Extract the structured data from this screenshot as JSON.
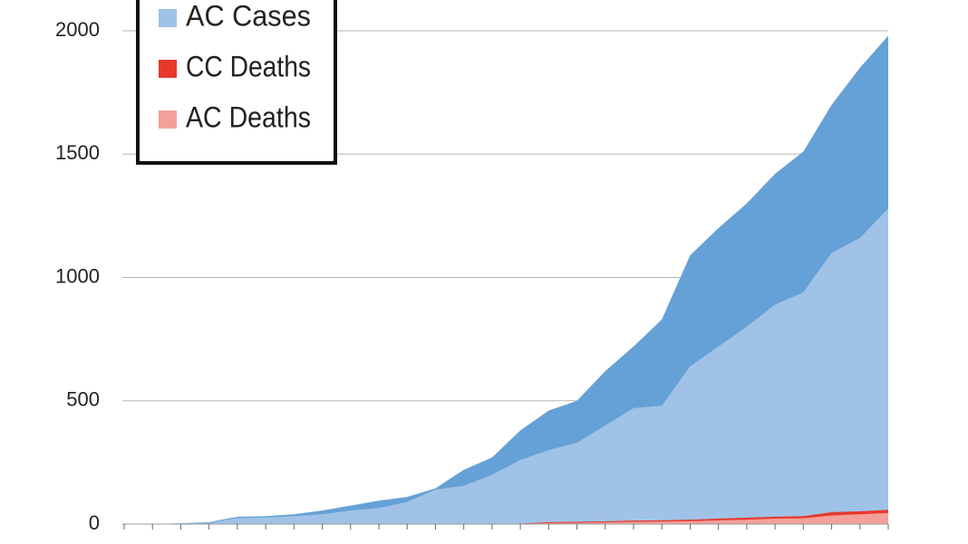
{
  "chart_data": {
    "type": "area",
    "categories": [
      null,
      null,
      null,
      null,
      null,
      null,
      null,
      null,
      null,
      null,
      null,
      null,
      null,
      null,
      null,
      null,
      null,
      null,
      null,
      null,
      null,
      null,
      null,
      null,
      null,
      null,
      null,
      null
    ],
    "series": [
      {
        "color": "#65a1d6",
        "values": [
          0,
          0,
          3,
          8,
          30,
          32,
          40,
          55,
          75,
          95,
          110,
          145,
          220,
          270,
          380,
          460,
          500,
          620,
          720,
          830,
          1090,
          1200,
          1300,
          1420,
          1510,
          1700,
          1850,
          1980
        ]
      },
      {
        "name": "AC Cases",
        "color": "#a0c2e6",
        "values": [
          0,
          0,
          2,
          5,
          25,
          27,
          32,
          40,
          55,
          65,
          90,
          140,
          155,
          200,
          260,
          300,
          330,
          400,
          470,
          480,
          640,
          720,
          800,
          890,
          940,
          1100,
          1160,
          1280
        ]
      },
      {
        "name": "CC Deaths",
        "color": "#e8382c",
        "values": [
          0,
          0,
          0,
          0,
          0,
          0,
          0,
          0,
          0,
          0,
          0,
          0,
          0,
          0,
          2,
          8,
          9,
          11,
          14,
          15,
          18,
          22,
          26,
          30,
          32,
          48,
          52,
          58
        ]
      },
      {
        "name": "AC Deaths",
        "color": "#f4a09a",
        "values": [
          0,
          0,
          0,
          0,
          0,
          0,
          0,
          0,
          0,
          0,
          0,
          0,
          0,
          0,
          1,
          4,
          5,
          7,
          9,
          10,
          12,
          15,
          18,
          22,
          24,
          35,
          40,
          45
        ]
      }
    ],
    "ylim": [
      0,
      2000
    ],
    "yticks": [
      0,
      500,
      1000,
      1500,
      2000
    ],
    "grid": true
  }
}
